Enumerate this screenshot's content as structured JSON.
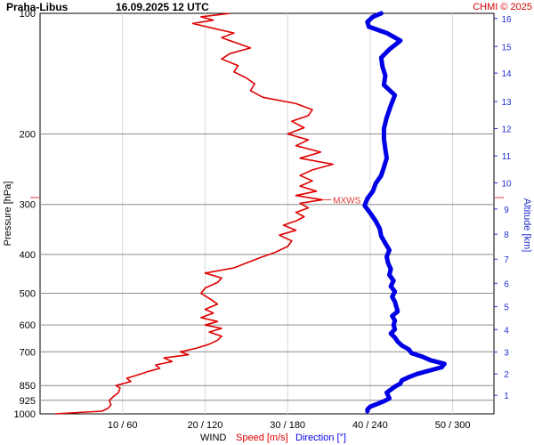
{
  "header": {
    "station": "Praha-Libus",
    "time": "16.09.2025 12 UTC",
    "credit": "CHMI © 2025"
  },
  "colors": {
    "speed": "#e00000",
    "direction": "#0000e6",
    "altitude_axis": "#1f2fd0",
    "grid_major": "#8c8c8c",
    "grid_minor": "#d8d8d8",
    "mxws": "#e03a3a"
  },
  "chart_data": {
    "type": "line",
    "y_axis": {
      "label": "Pressure [hPa]",
      "scale": "log",
      "inverted": true,
      "range": [
        100,
        1000
      ],
      "ticks": [
        100,
        200,
        300,
        400,
        500,
        600,
        700,
        850,
        925,
        1000
      ]
    },
    "x_axis": {
      "speed_range": [
        0,
        55
      ],
      "direction_range": [
        0,
        330
      ],
      "ticks": [
        {
          "speed": 10,
          "label": "10 / 60"
        },
        {
          "speed": 20,
          "label": "20 / 120"
        },
        {
          "speed": 30,
          "label": "30 / 180"
        },
        {
          "speed": 40,
          "label": "40 / 240"
        },
        {
          "speed": 50,
          "label": "50 / 300"
        }
      ]
    },
    "altitude_axis": {
      "label": "Altitude [km]",
      "ticks": [
        {
          "label": "1",
          "pressure": 899
        },
        {
          "label": "2",
          "pressure": 795
        },
        {
          "label": "3",
          "pressure": 701
        },
        {
          "label": "4",
          "pressure": 616
        },
        {
          "label": "5",
          "pressure": 540
        },
        {
          "label": "6",
          "pressure": 472
        },
        {
          "label": "7",
          "pressure": 411
        },
        {
          "label": "8",
          "pressure": 356
        },
        {
          "label": "9",
          "pressure": 308
        },
        {
          "label": "10",
          "pressure": 265
        },
        {
          "label": "11",
          "pressure": 227
        },
        {
          "label": "12",
          "pressure": 194
        },
        {
          "label": "13",
          "pressure": 166
        },
        {
          "label": "14",
          "pressure": 141
        },
        {
          "label": "15",
          "pressure": 121
        },
        {
          "label": "16",
          "pressure": 103
        }
      ]
    },
    "legend": {
      "prefix": "WIND",
      "speed": "Speed [m/s]",
      "direction": "Direction [°]"
    },
    "annotations": [
      {
        "text": "MXWS",
        "pressure": 292,
        "speed": 34.2
      }
    ],
    "series": [
      {
        "name": "Speed [m/s]",
        "points": [
          [
            1000,
            1.8
          ],
          [
            985,
            7.5
          ],
          [
            970,
            8.2
          ],
          [
            950,
            8.6
          ],
          [
            925,
            8.4
          ],
          [
            905,
            8.9
          ],
          [
            885,
            9.5
          ],
          [
            862,
            9.7
          ],
          [
            850,
            9.2
          ],
          [
            830,
            11.0
          ],
          [
            815,
            10.5
          ],
          [
            800,
            11.8
          ],
          [
            785,
            13.0
          ],
          [
            770,
            14.5
          ],
          [
            755,
            14.0
          ],
          [
            740,
            16.0
          ],
          [
            725,
            15.0
          ],
          [
            712,
            18.0
          ],
          [
            700,
            17.0
          ],
          [
            685,
            19.0
          ],
          [
            670,
            20.5
          ],
          [
            655,
            21.5
          ],
          [
            640,
            22.0
          ],
          [
            625,
            20.5
          ],
          [
            612,
            22.0
          ],
          [
            600,
            20.0
          ],
          [
            588,
            21.5
          ],
          [
            575,
            19.5
          ],
          [
            560,
            21.0
          ],
          [
            548,
            20.0
          ],
          [
            532,
            21.5
          ],
          [
            515,
            20.5
          ],
          [
            500,
            19.5
          ],
          [
            485,
            20.0
          ],
          [
            470,
            21.5
          ],
          [
            458,
            22.0
          ],
          [
            445,
            20.0
          ],
          [
            432,
            23.5
          ],
          [
            420,
            25.0
          ],
          [
            405,
            27.0
          ],
          [
            395,
            28.5
          ],
          [
            382,
            30.0
          ],
          [
            370,
            30.5
          ],
          [
            358,
            29.0
          ],
          [
            348,
            31.0
          ],
          [
            338,
            29.5
          ],
          [
            330,
            31.0
          ],
          [
            322,
            32.0
          ],
          [
            314,
            31.0
          ],
          [
            306,
            32.5
          ],
          [
            298,
            31.5
          ],
          [
            292,
            34.2
          ],
          [
            285,
            31.0
          ],
          [
            278,
            33.5
          ],
          [
            270,
            31.5
          ],
          [
            262,
            33.0
          ],
          [
            254,
            31.5
          ],
          [
            246,
            33.0
          ],
          [
            238,
            35.5
          ],
          [
            230,
            31.5
          ],
          [
            222,
            34.0
          ],
          [
            214,
            31.0
          ],
          [
            207,
            32.5
          ],
          [
            200,
            30.0
          ],
          [
            193,
            32.0
          ],
          [
            186,
            30.5
          ],
          [
            180,
            32.5
          ],
          [
            174,
            33.0
          ],
          [
            168,
            31.0
          ],
          [
            162,
            27.0
          ],
          [
            156,
            25.5
          ],
          [
            150,
            26.0
          ],
          [
            145,
            25.0
          ],
          [
            140,
            23.5
          ],
          [
            135,
            24.0
          ],
          [
            130,
            22.0
          ],
          [
            126,
            23.0
          ],
          [
            122,
            25.5
          ],
          [
            118,
            23.5
          ],
          [
            115,
            22.0
          ],
          [
            112,
            23.5
          ],
          [
            109,
            21.0
          ],
          [
            106,
            18.5
          ],
          [
            104,
            21.0
          ],
          [
            102,
            19.5
          ],
          [
            100,
            23.0
          ]
        ]
      },
      {
        "name": "Direction [°]",
        "points": [
          [
            985,
            238
          ],
          [
            975,
            238
          ],
          [
            960,
            240
          ],
          [
            945,
            245
          ],
          [
            930,
            250
          ],
          [
            915,
            254
          ],
          [
            900,
            253
          ],
          [
            885,
            252
          ],
          [
            870,
            255
          ],
          [
            855,
            258
          ],
          [
            840,
            262
          ],
          [
            825,
            263
          ],
          [
            810,
            268
          ],
          [
            795,
            274
          ],
          [
            780,
            283
          ],
          [
            765,
            292
          ],
          [
            750,
            294
          ],
          [
            735,
            284
          ],
          [
            720,
            278
          ],
          [
            705,
            270
          ],
          [
            690,
            268
          ],
          [
            675,
            263
          ],
          [
            660,
            260
          ],
          [
            645,
            258
          ],
          [
            630,
            255
          ],
          [
            615,
            258
          ],
          [
            600,
            257
          ],
          [
            585,
            258
          ],
          [
            570,
            256
          ],
          [
            555,
            260
          ],
          [
            540,
            259
          ],
          [
            525,
            258
          ],
          [
            510,
            256
          ],
          [
            495,
            258
          ],
          [
            480,
            255
          ],
          [
            465,
            257
          ],
          [
            450,
            254
          ],
          [
            435,
            255
          ],
          [
            420,
            253
          ],
          [
            405,
            252
          ],
          [
            390,
            254
          ],
          [
            375,
            251
          ],
          [
            360,
            248
          ],
          [
            345,
            247
          ],
          [
            330,
            244
          ],
          [
            315,
            240
          ],
          [
            302,
            236
          ],
          [
            290,
            238
          ],
          [
            278,
            242
          ],
          [
            266,
            244
          ],
          [
            254,
            248
          ],
          [
            242,
            250
          ],
          [
            230,
            252
          ],
          [
            218,
            251
          ],
          [
            206,
            250
          ],
          [
            194,
            250
          ],
          [
            182,
            252
          ],
          [
            170,
            255
          ],
          [
            160,
            258
          ],
          [
            151,
            250
          ],
          [
            143,
            251
          ],
          [
            136,
            249
          ],
          [
            129,
            248
          ],
          [
            123,
            254
          ],
          [
            117,
            262
          ],
          [
            112,
            252
          ],
          [
            108,
            239
          ],
          [
            105,
            238
          ],
          [
            102,
            242
          ],
          [
            100,
            248
          ]
        ]
      }
    ]
  }
}
